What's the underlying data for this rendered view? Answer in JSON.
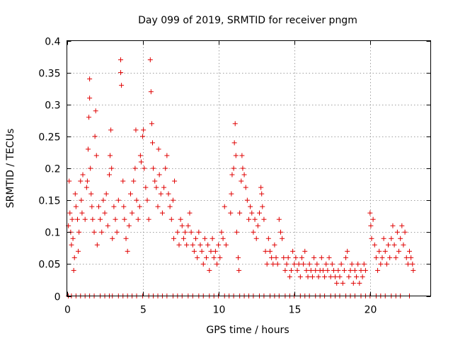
{
  "chart_data": {
    "type": "scatter",
    "title": "Day 099 of 2019, SRMTID for receiver pngm",
    "xlabel": "GPS time / hours",
    "ylabel": "SRMTID / TECUs",
    "xlim": [
      0,
      24
    ],
    "ylim": [
      0,
      0.4
    ],
    "x_ticks": [
      0,
      5,
      10,
      15,
      20
    ],
    "x_tick_labels": [
      "0",
      "5",
      "10",
      "15",
      "20"
    ],
    "y_ticks": [
      0,
      0.05,
      0.1,
      0.15,
      0.2,
      0.25,
      0.3,
      0.35,
      0.4
    ],
    "y_tick_labels": [
      "0",
      "0.05",
      "0.1",
      "0.15",
      "0.2",
      "0.25",
      "0.3",
      "0.35",
      "0.4"
    ],
    "grid": true,
    "marker": "plus",
    "color": "#e00000",
    "series": [
      {
        "name": "SRMTID",
        "points": [
          [
            0.1,
            0.11
          ],
          [
            0.15,
            0.18
          ],
          [
            0.2,
            0.13
          ],
          [
            0.25,
            0.1
          ],
          [
            0.3,
            0.08
          ],
          [
            0.35,
            0.12
          ],
          [
            0.4,
            0.09
          ],
          [
            0.45,
            0.04
          ],
          [
            0.5,
            0.06
          ],
          [
            0.55,
            0.16
          ],
          [
            0.6,
            0.14
          ],
          [
            0.7,
            0.12
          ],
          [
            0.75,
            0.07
          ],
          [
            0.8,
            0.1
          ],
          [
            0.9,
            0.18
          ],
          [
            0.95,
            0.15
          ],
          [
            1.0,
            0.13
          ],
          [
            1.05,
            0.19
          ],
          [
            1.2,
            0.12
          ],
          [
            1.3,
            0.17
          ],
          [
            1.35,
            0.18
          ],
          [
            1.4,
            0.23
          ],
          [
            1.45,
            0.28
          ],
          [
            1.5,
            0.31
          ],
          [
            1.5,
            0.34
          ],
          [
            1.55,
            0.2
          ],
          [
            1.6,
            0.16
          ],
          [
            1.65,
            0.14
          ],
          [
            1.7,
            0.12
          ],
          [
            1.8,
            0.1
          ],
          [
            1.85,
            0.25
          ],
          [
            1.9,
            0.29
          ],
          [
            1.95,
            0.22
          ],
          [
            2.0,
            0.08
          ],
          [
            2.1,
            0.14
          ],
          [
            2.2,
            0.12
          ],
          [
            2.3,
            0.1
          ],
          [
            2.4,
            0.15
          ],
          [
            2.5,
            0.13
          ],
          [
            2.6,
            0.16
          ],
          [
            2.7,
            0.11
          ],
          [
            2.8,
            0.19
          ],
          [
            2.85,
            0.22
          ],
          [
            2.9,
            0.26
          ],
          [
            2.95,
            0.2
          ],
          [
            3.0,
            0.09
          ],
          [
            3.1,
            0.14
          ],
          [
            3.2,
            0.12
          ],
          [
            3.3,
            0.1
          ],
          [
            3.4,
            0.15
          ],
          [
            3.55,
            0.37
          ],
          [
            3.55,
            0.35
          ],
          [
            3.6,
            0.33
          ],
          [
            3.7,
            0.18
          ],
          [
            3.75,
            0.14
          ],
          [
            3.8,
            0.12
          ],
          [
            3.9,
            0.09
          ],
          [
            4.0,
            0.07
          ],
          [
            4.1,
            0.11
          ],
          [
            4.2,
            0.16
          ],
          [
            4.3,
            0.13
          ],
          [
            4.4,
            0.18
          ],
          [
            4.5,
            0.2
          ],
          [
            4.55,
            0.26
          ],
          [
            4.6,
            0.15
          ],
          [
            4.7,
            0.12
          ],
          [
            4.8,
            0.14
          ],
          [
            4.85,
            0.22
          ],
          [
            4.9,
            0.21
          ],
          [
            5.0,
            0.25
          ],
          [
            5.05,
            0.26
          ],
          [
            5.1,
            0.2
          ],
          [
            5.2,
            0.17
          ],
          [
            5.3,
            0.15
          ],
          [
            5.4,
            0.12
          ],
          [
            5.5,
            0.37
          ],
          [
            5.55,
            0.32
          ],
          [
            5.6,
            0.27
          ],
          [
            5.65,
            0.24
          ],
          [
            5.7,
            0.2
          ],
          [
            5.8,
            0.18
          ],
          [
            5.9,
            0.17
          ],
          [
            6.0,
            0.14
          ],
          [
            6.05,
            0.23
          ],
          [
            6.1,
            0.19
          ],
          [
            6.2,
            0.16
          ],
          [
            6.3,
            0.13
          ],
          [
            6.4,
            0.17
          ],
          [
            6.5,
            0.2
          ],
          [
            6.6,
            0.22
          ],
          [
            6.7,
            0.16
          ],
          [
            6.8,
            0.14
          ],
          [
            6.9,
            0.12
          ],
          [
            7.0,
            0.15
          ],
          [
            7.05,
            0.09
          ],
          [
            7.1,
            0.18
          ],
          [
            7.3,
            0.1
          ],
          [
            7.4,
            0.08
          ],
          [
            7.5,
            0.12
          ],
          [
            7.6,
            0.11
          ],
          [
            7.7,
            0.09
          ],
          [
            7.8,
            0.1
          ],
          [
            7.9,
            0.08
          ],
          [
            8.0,
            0.11
          ],
          [
            8.1,
            0.13
          ],
          [
            8.2,
            0.1
          ],
          [
            8.3,
            0.08
          ],
          [
            8.4,
            0.07
          ],
          [
            8.5,
            0.09
          ],
          [
            8.6,
            0.06
          ],
          [
            8.7,
            0.1
          ],
          [
            8.8,
            0.08
          ],
          [
            8.9,
            0.07
          ],
          [
            9.0,
            0.05
          ],
          [
            9.1,
            0.09
          ],
          [
            9.2,
            0.06
          ],
          [
            9.3,
            0.08
          ],
          [
            9.4,
            0.04
          ],
          [
            9.5,
            0.07
          ],
          [
            9.6,
            0.09
          ],
          [
            9.7,
            0.06
          ],
          [
            9.8,
            0.07
          ],
          [
            9.9,
            0.05
          ],
          [
            10.0,
            0.08
          ],
          [
            10.1,
            0.06
          ],
          [
            10.2,
            0.1
          ],
          [
            10.3,
            0.09
          ],
          [
            10.4,
            0.14
          ],
          [
            10.5,
            0.08
          ],
          [
            10.8,
            0.13
          ],
          [
            10.85,
            0.16
          ],
          [
            10.9,
            0.19
          ],
          [
            11.0,
            0.2
          ],
          [
            11.05,
            0.24
          ],
          [
            11.1,
            0.27
          ],
          [
            11.15,
            0.22
          ],
          [
            11.2,
            0.1
          ],
          [
            11.3,
            0.06
          ],
          [
            11.35,
            0.04
          ],
          [
            11.4,
            0.13
          ],
          [
            11.5,
            0.18
          ],
          [
            11.55,
            0.22
          ],
          [
            11.6,
            0.2
          ],
          [
            11.7,
            0.19
          ],
          [
            11.8,
            0.17
          ],
          [
            11.9,
            0.15
          ],
          [
            12.0,
            0.12
          ],
          [
            12.1,
            0.14
          ],
          [
            12.2,
            0.13
          ],
          [
            12.3,
            0.1
          ],
          [
            12.4,
            0.12
          ],
          [
            12.5,
            0.09
          ],
          [
            12.6,
            0.11
          ],
          [
            12.7,
            0.13
          ],
          [
            12.8,
            0.17
          ],
          [
            12.85,
            0.16
          ],
          [
            12.9,
            0.14
          ],
          [
            13.0,
            0.12
          ],
          [
            13.1,
            0.07
          ],
          [
            13.2,
            0.05
          ],
          [
            13.3,
            0.09
          ],
          [
            13.4,
            0.07
          ],
          [
            13.5,
            0.06
          ],
          [
            13.6,
            0.05
          ],
          [
            13.7,
            0.08
          ],
          [
            13.8,
            0.06
          ],
          [
            13.9,
            0.05
          ],
          [
            14.0,
            0.12
          ],
          [
            14.1,
            0.1
          ],
          [
            14.2,
            0.09
          ],
          [
            14.3,
            0.06
          ],
          [
            14.4,
            0.04
          ],
          [
            14.5,
            0.05
          ],
          [
            14.6,
            0.06
          ],
          [
            14.7,
            0.03
          ],
          [
            14.8,
            0.04
          ],
          [
            14.9,
            0.07
          ],
          [
            15.0,
            0.05
          ],
          [
            15.1,
            0.06
          ],
          [
            15.2,
            0.04
          ],
          [
            15.3,
            0.05
          ],
          [
            15.4,
            0.03
          ],
          [
            15.5,
            0.06
          ],
          [
            15.6,
            0.05
          ],
          [
            15.7,
            0.07
          ],
          [
            15.8,
            0.04
          ],
          [
            15.9,
            0.03
          ],
          [
            16.0,
            0.05
          ],
          [
            16.1,
            0.04
          ],
          [
            16.2,
            0.03
          ],
          [
            16.3,
            0.06
          ],
          [
            16.4,
            0.04
          ],
          [
            16.5,
            0.05
          ],
          [
            16.6,
            0.03
          ],
          [
            16.7,
            0.04
          ],
          [
            16.8,
            0.06
          ],
          [
            16.9,
            0.04
          ],
          [
            17.0,
            0.03
          ],
          [
            17.1,
            0.05
          ],
          [
            17.2,
            0.04
          ],
          [
            17.3,
            0.06
          ],
          [
            17.4,
            0.03
          ],
          [
            17.5,
            0.05
          ],
          [
            17.6,
            0.04
          ],
          [
            17.7,
            0.03
          ],
          [
            17.8,
            0.02
          ],
          [
            17.9,
            0.04
          ],
          [
            18.0,
            0.03
          ],
          [
            18.1,
            0.05
          ],
          [
            18.2,
            0.02
          ],
          [
            18.3,
            0.04
          ],
          [
            18.4,
            0.06
          ],
          [
            18.5,
            0.07
          ],
          [
            18.6,
            0.03
          ],
          [
            18.7,
            0.04
          ],
          [
            18.8,
            0.05
          ],
          [
            18.9,
            0.02
          ],
          [
            19.0,
            0.04
          ],
          [
            19.1,
            0.03
          ],
          [
            19.2,
            0.05
          ],
          [
            19.3,
            0.02
          ],
          [
            19.4,
            0.04
          ],
          [
            19.5,
            0.03
          ],
          [
            19.6,
            0.05
          ],
          [
            19.7,
            0.04
          ],
          [
            20.0,
            0.13
          ],
          [
            20.05,
            0.11
          ],
          [
            20.1,
            0.09
          ],
          [
            20.2,
            0.12
          ],
          [
            20.3,
            0.08
          ],
          [
            20.4,
            0.06
          ],
          [
            20.5,
            0.04
          ],
          [
            20.6,
            0.07
          ],
          [
            20.7,
            0.05
          ],
          [
            20.8,
            0.06
          ],
          [
            20.9,
            0.09
          ],
          [
            21.0,
            0.07
          ],
          [
            21.1,
            0.05
          ],
          [
            21.2,
            0.08
          ],
          [
            21.3,
            0.06
          ],
          [
            21.4,
            0.09
          ],
          [
            21.5,
            0.11
          ],
          [
            21.6,
            0.08
          ],
          [
            21.7,
            0.06
          ],
          [
            21.8,
            0.1
          ],
          [
            21.9,
            0.07
          ],
          [
            22.0,
            0.09
          ],
          [
            22.1,
            0.11
          ],
          [
            22.2,
            0.08
          ],
          [
            22.3,
            0.1
          ],
          [
            22.4,
            0.06
          ],
          [
            22.5,
            0.05
          ],
          [
            22.6,
            0.07
          ],
          [
            22.7,
            0.06
          ],
          [
            22.8,
            0.05
          ],
          [
            22.85,
            0.04
          ]
        ],
        "zero_x": [
          0.1,
          0.3,
          0.6,
          0.9,
          1.2,
          1.5,
          1.8,
          2.2,
          2.5,
          2.8,
          3.0,
          3.4,
          3.7,
          4.0,
          4.3,
          4.6,
          5.0,
          5.4,
          5.7,
          6.0,
          6.3,
          6.6,
          7.0,
          7.3,
          7.6,
          8.0,
          8.3,
          8.7,
          9.0,
          9.4,
          9.7,
          10.0,
          10.4,
          10.7,
          11.0,
          11.4,
          11.7,
          12.0,
          12.3,
          12.7,
          13.0,
          13.4,
          13.7,
          14.0,
          14.4,
          14.7,
          15.0,
          15.4,
          15.7,
          16.0,
          16.4,
          16.7,
          17.0,
          17.4,
          17.7,
          18.0,
          18.4,
          18.7,
          19.0,
          19.4,
          19.7,
          20.0,
          20.4,
          20.7,
          21.0,
          21.4,
          21.7,
          22.0,
          22.6
        ]
      }
    ]
  }
}
